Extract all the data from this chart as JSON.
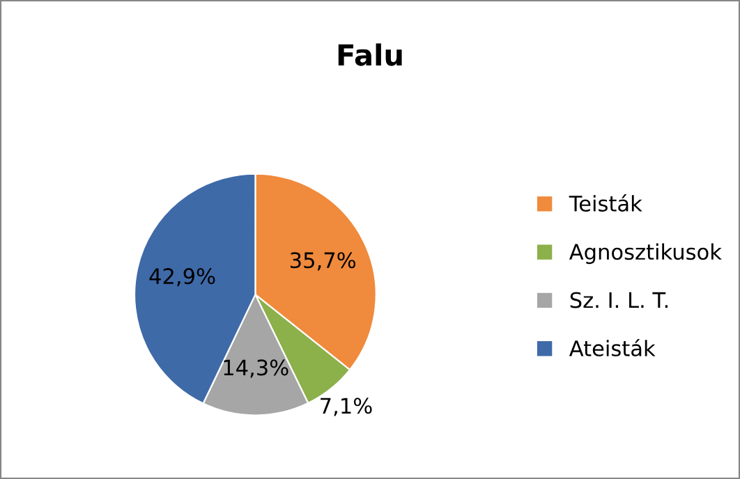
{
  "chart_data": {
    "type": "pie",
    "title": "Falu",
    "categories": [
      "Teisták",
      "Agnosztikusok",
      "Sz. I. L. T.",
      "Ateisták"
    ],
    "values": [
      35.7,
      7.1,
      14.3,
      42.9
    ],
    "colors": [
      "#f08a3c",
      "#8cb04a",
      "#a6a6a6",
      "#3f6aa8"
    ],
    "value_labels": [
      "35,7%",
      "7,1%",
      "14,3%",
      "42,9%"
    ],
    "legend": "right"
  }
}
